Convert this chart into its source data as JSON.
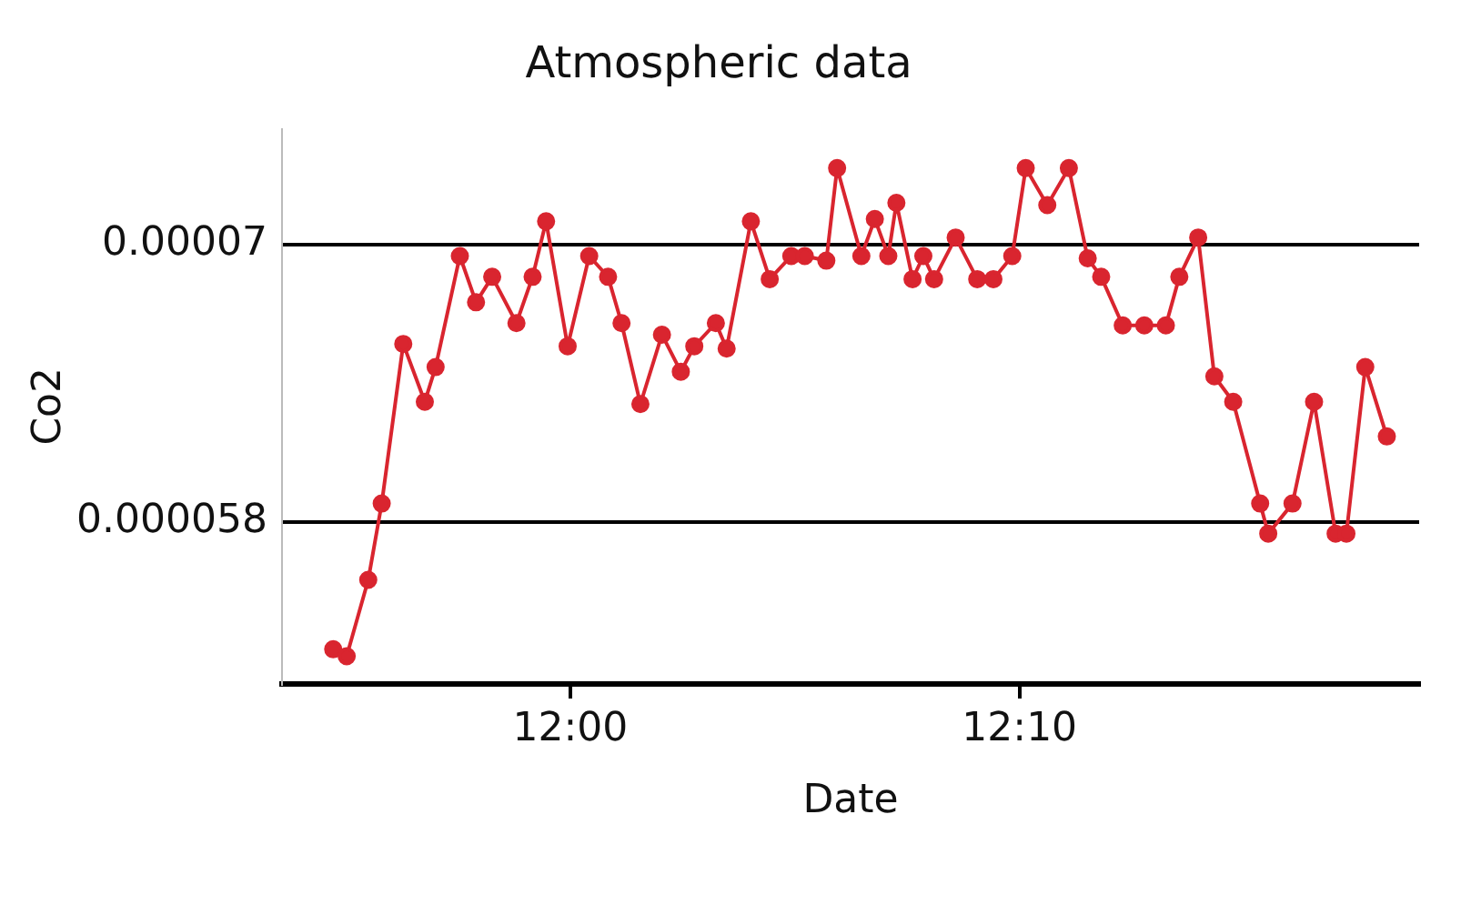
{
  "chart_data": {
    "type": "line",
    "title": "Atmospheric data",
    "xlabel": "Date",
    "ylabel": "Co2",
    "color": "#d9252f",
    "marker": "circle",
    "grid": "y",
    "xlim": [
      11.893,
      12.315
    ],
    "xticks": [
      {
        "value": 12,
        "label": "12:00"
      },
      {
        "value": 12.1667,
        "label": "12:10"
      }
    ],
    "ylim": [
      5.1e-05,
      7.5e-05
    ],
    "yticks": [
      {
        "value": 5.8e-05,
        "label": "0.000058"
      },
      {
        "value": 7e-05,
        "label": "0.00007"
      }
    ],
    "x": [
      11.912,
      11.917,
      11.925,
      11.93,
      11.938,
      11.946,
      11.95,
      11.959,
      11.965,
      11.971,
      11.98,
      11.986,
      11.991,
      11.999,
      12.007,
      12.014,
      12.019,
      12.026,
      12.034,
      12.041,
      12.046,
      12.054,
      12.058,
      12.067,
      12.074,
      12.082,
      12.087,
      12.095,
      12.099,
      12.108,
      12.113,
      12.118,
      12.121,
      12.127,
      12.131,
      12.135,
      12.143,
      12.151,
      12.157,
      12.164,
      12.169,
      12.177,
      12.185,
      12.192,
      12.197,
      12.205,
      12.213,
      12.221,
      12.226,
      12.233,
      12.239,
      12.246,
      12.256,
      12.259,
      12.268,
      12.276,
      12.284,
      12.288,
      12.295,
      12.303
    ],
    "values": [
      5.25e-05,
      5.22e-05,
      5.55e-05,
      5.88e-05,
      6.57e-05,
      6.32e-05,
      6.47e-05,
      6.95e-05,
      6.75e-05,
      6.86e-05,
      6.66e-05,
      6.86e-05,
      7.1e-05,
      6.56e-05,
      6.95e-05,
      6.86e-05,
      6.66e-05,
      6.31e-05,
      6.61e-05,
      6.45e-05,
      6.56e-05,
      6.66e-05,
      6.55e-05,
      7.1e-05,
      6.85e-05,
      6.95e-05,
      6.95e-05,
      6.93e-05,
      7.33e-05,
      6.95e-05,
      7.11e-05,
      6.95e-05,
      7.18e-05,
      6.85e-05,
      6.95e-05,
      6.85e-05,
      7.03e-05,
      6.85e-05,
      6.85e-05,
      6.95e-05,
      7.33e-05,
      7.17e-05,
      7.33e-05,
      6.94e-05,
      6.86e-05,
      6.65e-05,
      6.65e-05,
      6.65e-05,
      6.86e-05,
      7.03e-05,
      6.43e-05,
      6.32e-05,
      5.88e-05,
      5.75e-05,
      5.88e-05,
      6.32e-05,
      5.75e-05,
      5.75e-05,
      6.47e-05,
      6.17e-05
    ]
  }
}
